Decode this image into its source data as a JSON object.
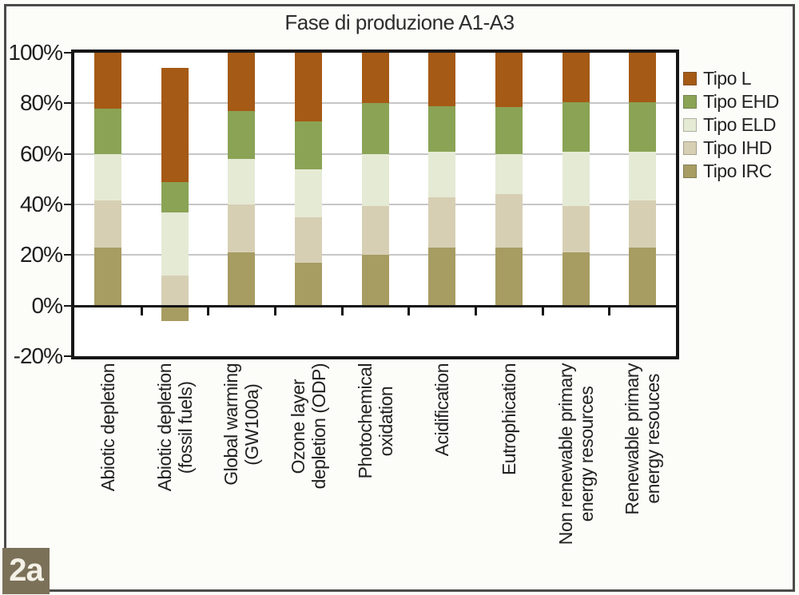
{
  "figure": {
    "badge_label": "2a"
  },
  "chart_data": {
    "type": "bar",
    "stacked": true,
    "title": "Fase di produzione A1-A3",
    "xlabel": "",
    "ylabel": "",
    "ylim": [
      -20,
      100
    ],
    "grid": "horizontal",
    "gridlines": [
      80,
      60,
      40,
      20
    ],
    "yticks": [
      {
        "label": "100%",
        "value": 100
      },
      {
        "label": "80%",
        "value": 80
      },
      {
        "label": "60%",
        "value": 60
      },
      {
        "label": "40%",
        "value": 40
      },
      {
        "label": "20%",
        "value": 20
      },
      {
        "label": "0%",
        "value": 0
      },
      {
        "label": "-20%",
        "value": -20
      }
    ],
    "legend_position": "right",
    "legend": [
      {
        "label": "Tipo L",
        "series": "L"
      },
      {
        "label": "Tipo EHD",
        "series": "EHD"
      },
      {
        "label": "Tipo ELD",
        "series": "ELD"
      },
      {
        "label": "Tipo IHD",
        "series": "IHD"
      },
      {
        "label": "Tipo IRC",
        "series": "IRC"
      }
    ],
    "series_colors": {
      "L": "#a55a15",
      "EHD": "#8aa355",
      "ELD": "#e5ead5",
      "IHD": "#d7cfb4",
      "IRC": "#a79c62"
    },
    "categories": [
      {
        "label": "Abiotic depletion",
        "lines": [
          "Abiotic depletion"
        ]
      },
      {
        "label": "Abiotic depletion (fossil fuels)",
        "lines": [
          "Abiotic depletion",
          "(fossil fuels)"
        ]
      },
      {
        "label": "Global warming (GW100a)",
        "lines": [
          "Global warming",
          "(GW100a)"
        ]
      },
      {
        "label": "Ozone layer depletion (ODP)",
        "lines": [
          "Ozone layer",
          "depletion (ODP)"
        ]
      },
      {
        "label": "Photochemical oxidation",
        "lines": [
          "Photochemical",
          "oxidation"
        ]
      },
      {
        "label": "Acidification",
        "lines": [
          "Acidification"
        ]
      },
      {
        "label": "Eutrophication",
        "lines": [
          "Eutrophication"
        ]
      },
      {
        "label": "Non renewable primary energy resources",
        "lines": [
          "Non renewable primary",
          "energy resources"
        ]
      },
      {
        "label": "Renewable primary energy resouces",
        "lines": [
          "Renewable primary",
          "energy resouces"
        ]
      }
    ],
    "stack_order_bottom_to_top": [
      "IRC",
      "IHD",
      "ELD",
      "EHD",
      "L"
    ],
    "series": [
      {
        "name": "IRC",
        "values": [
          23,
          -6,
          21,
          17,
          20,
          23,
          23,
          21,
          23
        ]
      },
      {
        "name": "IHD",
        "values": [
          18.5,
          12,
          19,
          18,
          19.5,
          20,
          21,
          18.5,
          18.5
        ]
      },
      {
        "name": "ELD",
        "values": [
          18.5,
          25,
          18,
          19,
          20.5,
          18,
          16,
          21.5,
          19.5
        ]
      },
      {
        "name": "EHD",
        "values": [
          18,
          12,
          19,
          19,
          20,
          18,
          18.5,
          19.5,
          19.5
        ]
      },
      {
        "name": "L",
        "values": [
          22,
          45,
          23,
          27,
          20,
          21,
          21.5,
          19.5,
          19.5
        ]
      }
    ]
  }
}
